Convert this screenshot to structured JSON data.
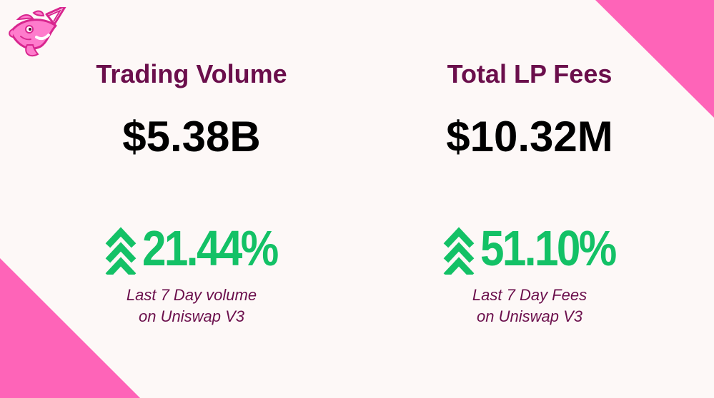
{
  "theme": {
    "background": "#fdf8f7",
    "accent_pink": "#fe64b8",
    "title_color": "#6b0f4c",
    "value_color": "#000000",
    "positive_color": "#13c166"
  },
  "logo": {
    "icon": "uniswap-unicorn-fish-icon"
  },
  "stats": [
    {
      "title": "Trading Volume",
      "value": "$5.38B",
      "change": "21.44%",
      "change_icon": "double-chevron-up-icon",
      "caption_line1": "Last 7 Day volume",
      "caption_line2": "on Uniswap V3"
    },
    {
      "title": "Total LP Fees",
      "value": "$10.32M",
      "change": "51.10%",
      "change_icon": "double-chevron-up-icon",
      "caption_line1": "Last 7 Day Fees",
      "caption_line2": "on Uniswap V3"
    }
  ]
}
